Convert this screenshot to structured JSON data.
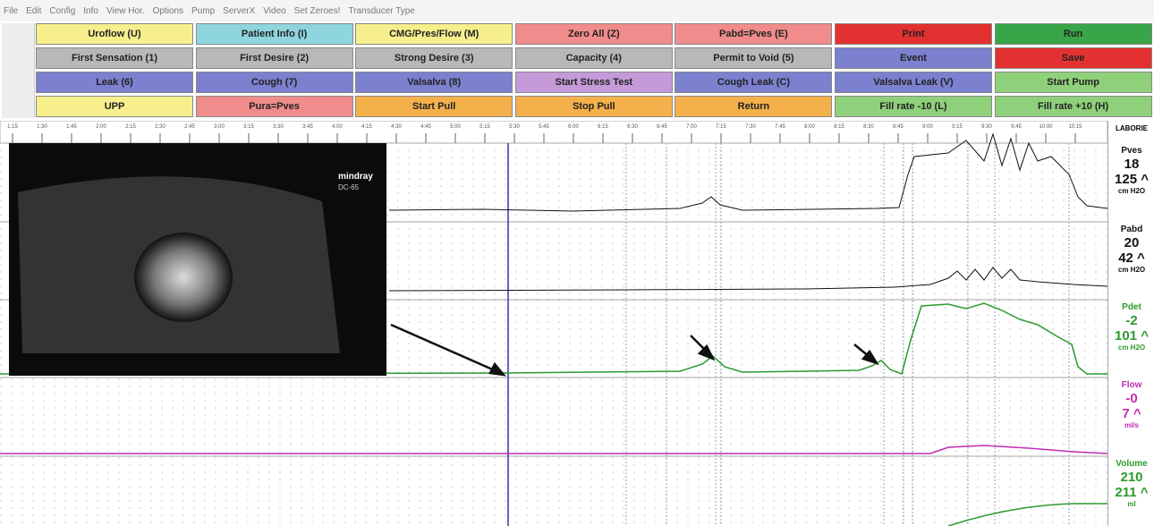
{
  "menu": [
    "File",
    "Edit",
    "Config",
    "Info",
    "View Hor.",
    "Options",
    "Pump",
    "ServerX",
    "Video",
    "Set Zeroes!",
    "Transducer Type"
  ],
  "buttons": [
    [
      {
        "label": "Uroflow (U)",
        "color": "#f6ef8c"
      },
      {
        "label": "Patient Info (I)",
        "color": "#8fd5de"
      },
      {
        "label": "CMG/Pres/Flow (M)",
        "color": "#f6ef8c"
      },
      {
        "label": "Zero All (Z)",
        "color": "#f08c8c"
      },
      {
        "label": "Pabd=Pves (E)",
        "color": "#f08c8c"
      },
      {
        "label": "Print",
        "color": "#e33131"
      },
      {
        "label": "Run",
        "color": "#38a548"
      }
    ],
    [
      {
        "label": "First Sensation (1)",
        "color": "#b8b8b8"
      },
      {
        "label": "First Desire (2)",
        "color": "#b8b8b8"
      },
      {
        "label": "Strong Desire (3)",
        "color": "#b8b8b8"
      },
      {
        "label": "Capacity (4)",
        "color": "#b8b8b8"
      },
      {
        "label": "Permit to Void (5)",
        "color": "#b8b8b8"
      },
      {
        "label": "Event",
        "color": "#7b80cf"
      },
      {
        "label": "Save",
        "color": "#e33131"
      }
    ],
    [
      {
        "label": "Leak (6)",
        "color": "#7b80cf"
      },
      {
        "label": "Cough (7)",
        "color": "#7b80cf"
      },
      {
        "label": "Valsalva (8)",
        "color": "#7b80cf"
      },
      {
        "label": "Start Stress Test",
        "color": "#c49ad8"
      },
      {
        "label": "Cough Leak (C)",
        "color": "#7b80cf"
      },
      {
        "label": "Valsalva Leak (V)",
        "color": "#7b80cf"
      },
      {
        "label": "Start Pump",
        "color": "#8fd07b"
      }
    ],
    [
      {
        "label": "UPP",
        "color": "#f6ef8c"
      },
      {
        "label": "Pura=Pves",
        "color": "#f08c8c"
      },
      {
        "label": "Start Pull",
        "color": "#f4b04b"
      },
      {
        "label": "Stop Pull",
        "color": "#f4b04b"
      },
      {
        "label": "Return",
        "color": "#f4b04b"
      },
      {
        "label": "Fill rate -10 (L)",
        "color": "#8fd07b"
      },
      {
        "label": "Fill rate +10 (H)",
        "color": "#8fd07b"
      }
    ]
  ],
  "time_axis": [
    "1:15",
    "1:30",
    "1:45",
    "2:00",
    "2:15",
    "2:30",
    "2:45",
    "3:00",
    "3:15",
    "3:30",
    "3:45",
    "4:00",
    "4:15",
    "4:30",
    "4:45",
    "5:00",
    "5:15",
    "5:30",
    "5:45",
    "6:00",
    "6:15",
    "6:30",
    "6:45",
    "7:00",
    "7:15",
    "7:30",
    "7:45",
    "8:00",
    "8:15",
    "8:30",
    "8:45",
    "9:00",
    "9:15",
    "9:30",
    "9:45",
    "10:00",
    "10:15"
  ],
  "header_label": "LABORIE",
  "ultrasound": {
    "brand": "mindray",
    "model": "DC-65"
  },
  "channels": [
    {
      "name": "Pves",
      "value": "18",
      "max": "125 ^",
      "unit": "cm H2O",
      "color": "#111111"
    },
    {
      "name": "Pabd",
      "value": "20",
      "max": "42 ^",
      "unit": "cm H2O",
      "color": "#111111"
    },
    {
      "name": "Pdet",
      "value": "-2",
      "max": "101 ^",
      "unit": "cm H2O",
      "color": "#2c9a2c"
    },
    {
      "name": "Flow",
      "value": "-0",
      "max": "7 ^",
      "unit": "ml/s",
      "color": "#c02cb0"
    },
    {
      "name": "Volume",
      "value": "210",
      "max": "211 ^",
      "unit": "ml",
      "color": "#2c9a2c"
    }
  ]
}
